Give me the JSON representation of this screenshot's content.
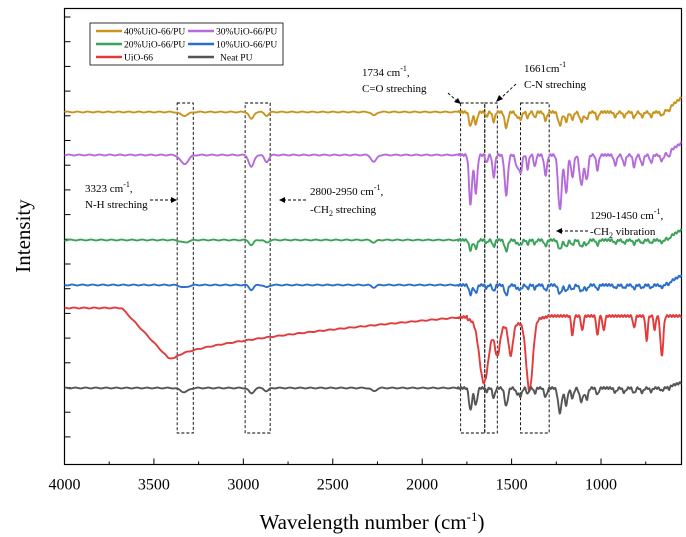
{
  "chart_data": {
    "type": "line",
    "xlabel": "Wavelength number (cm",
    "xlabel_sup": "-1",
    "xlabel_end": ")",
    "ylabel": "Intensity",
    "xlim": [
      4000,
      550
    ],
    "x_reversed": true,
    "x_ticks": [
      4000,
      3500,
      3000,
      2500,
      2000,
      1500,
      1000
    ],
    "y_ticks_count": 18,
    "legend_position": "top-left",
    "series": [
      {
        "name": "40%UiO-66/PU",
        "color": "#c9951f",
        "offset": 0
      },
      {
        "name": "30%UiO-66/PU",
        "color": "#b56bdc",
        "offset": 1
      },
      {
        "name": "20%UiO-66/PU",
        "color": "#3aa35a",
        "offset": 2
      },
      {
        "name": "10%UiO-66/PU",
        "color": "#2a6fcc",
        "offset": 3
      },
      {
        "name": "UiO-66",
        "color": "#e23b3b",
        "offset": 4
      },
      {
        "name": "Neat PU",
        "color": "#555555",
        "offset": 5
      }
    ],
    "annotations": [
      {
        "id": "a3323",
        "line1": "3323 cm",
        "line1_sup": "-1",
        "line1_end": ",",
        "line2": "N-H streching"
      },
      {
        "id": "a2800",
        "line1": "2800-2950 cm",
        "line1_sup": "-1",
        "line1_end": ",",
        "line2a": "-CH",
        "line2_sub": "2",
        "line2b": " streching"
      },
      {
        "id": "a1734",
        "line1": "1734 cm",
        "line1_sup": "-1",
        "line1_end": ",",
        "line2": "C=O streching"
      },
      {
        "id": "a1661",
        "line1": "1661cm",
        "line1_sup": "-1",
        "line2": "C-N streching"
      },
      {
        "id": "a1290",
        "line1": "1290-1450 cm",
        "line1_sup": "-1",
        "line1_end": ",",
        "line2a": "-CH",
        "line2_sub": "2",
        "line2b": " vibration"
      }
    ],
    "highlight_ranges": [
      [
        3370,
        3280
      ],
      [
        2990,
        2850
      ],
      [
        1785,
        1650
      ],
      [
        1650,
        1580
      ],
      [
        1450,
        1290
      ]
    ]
  }
}
